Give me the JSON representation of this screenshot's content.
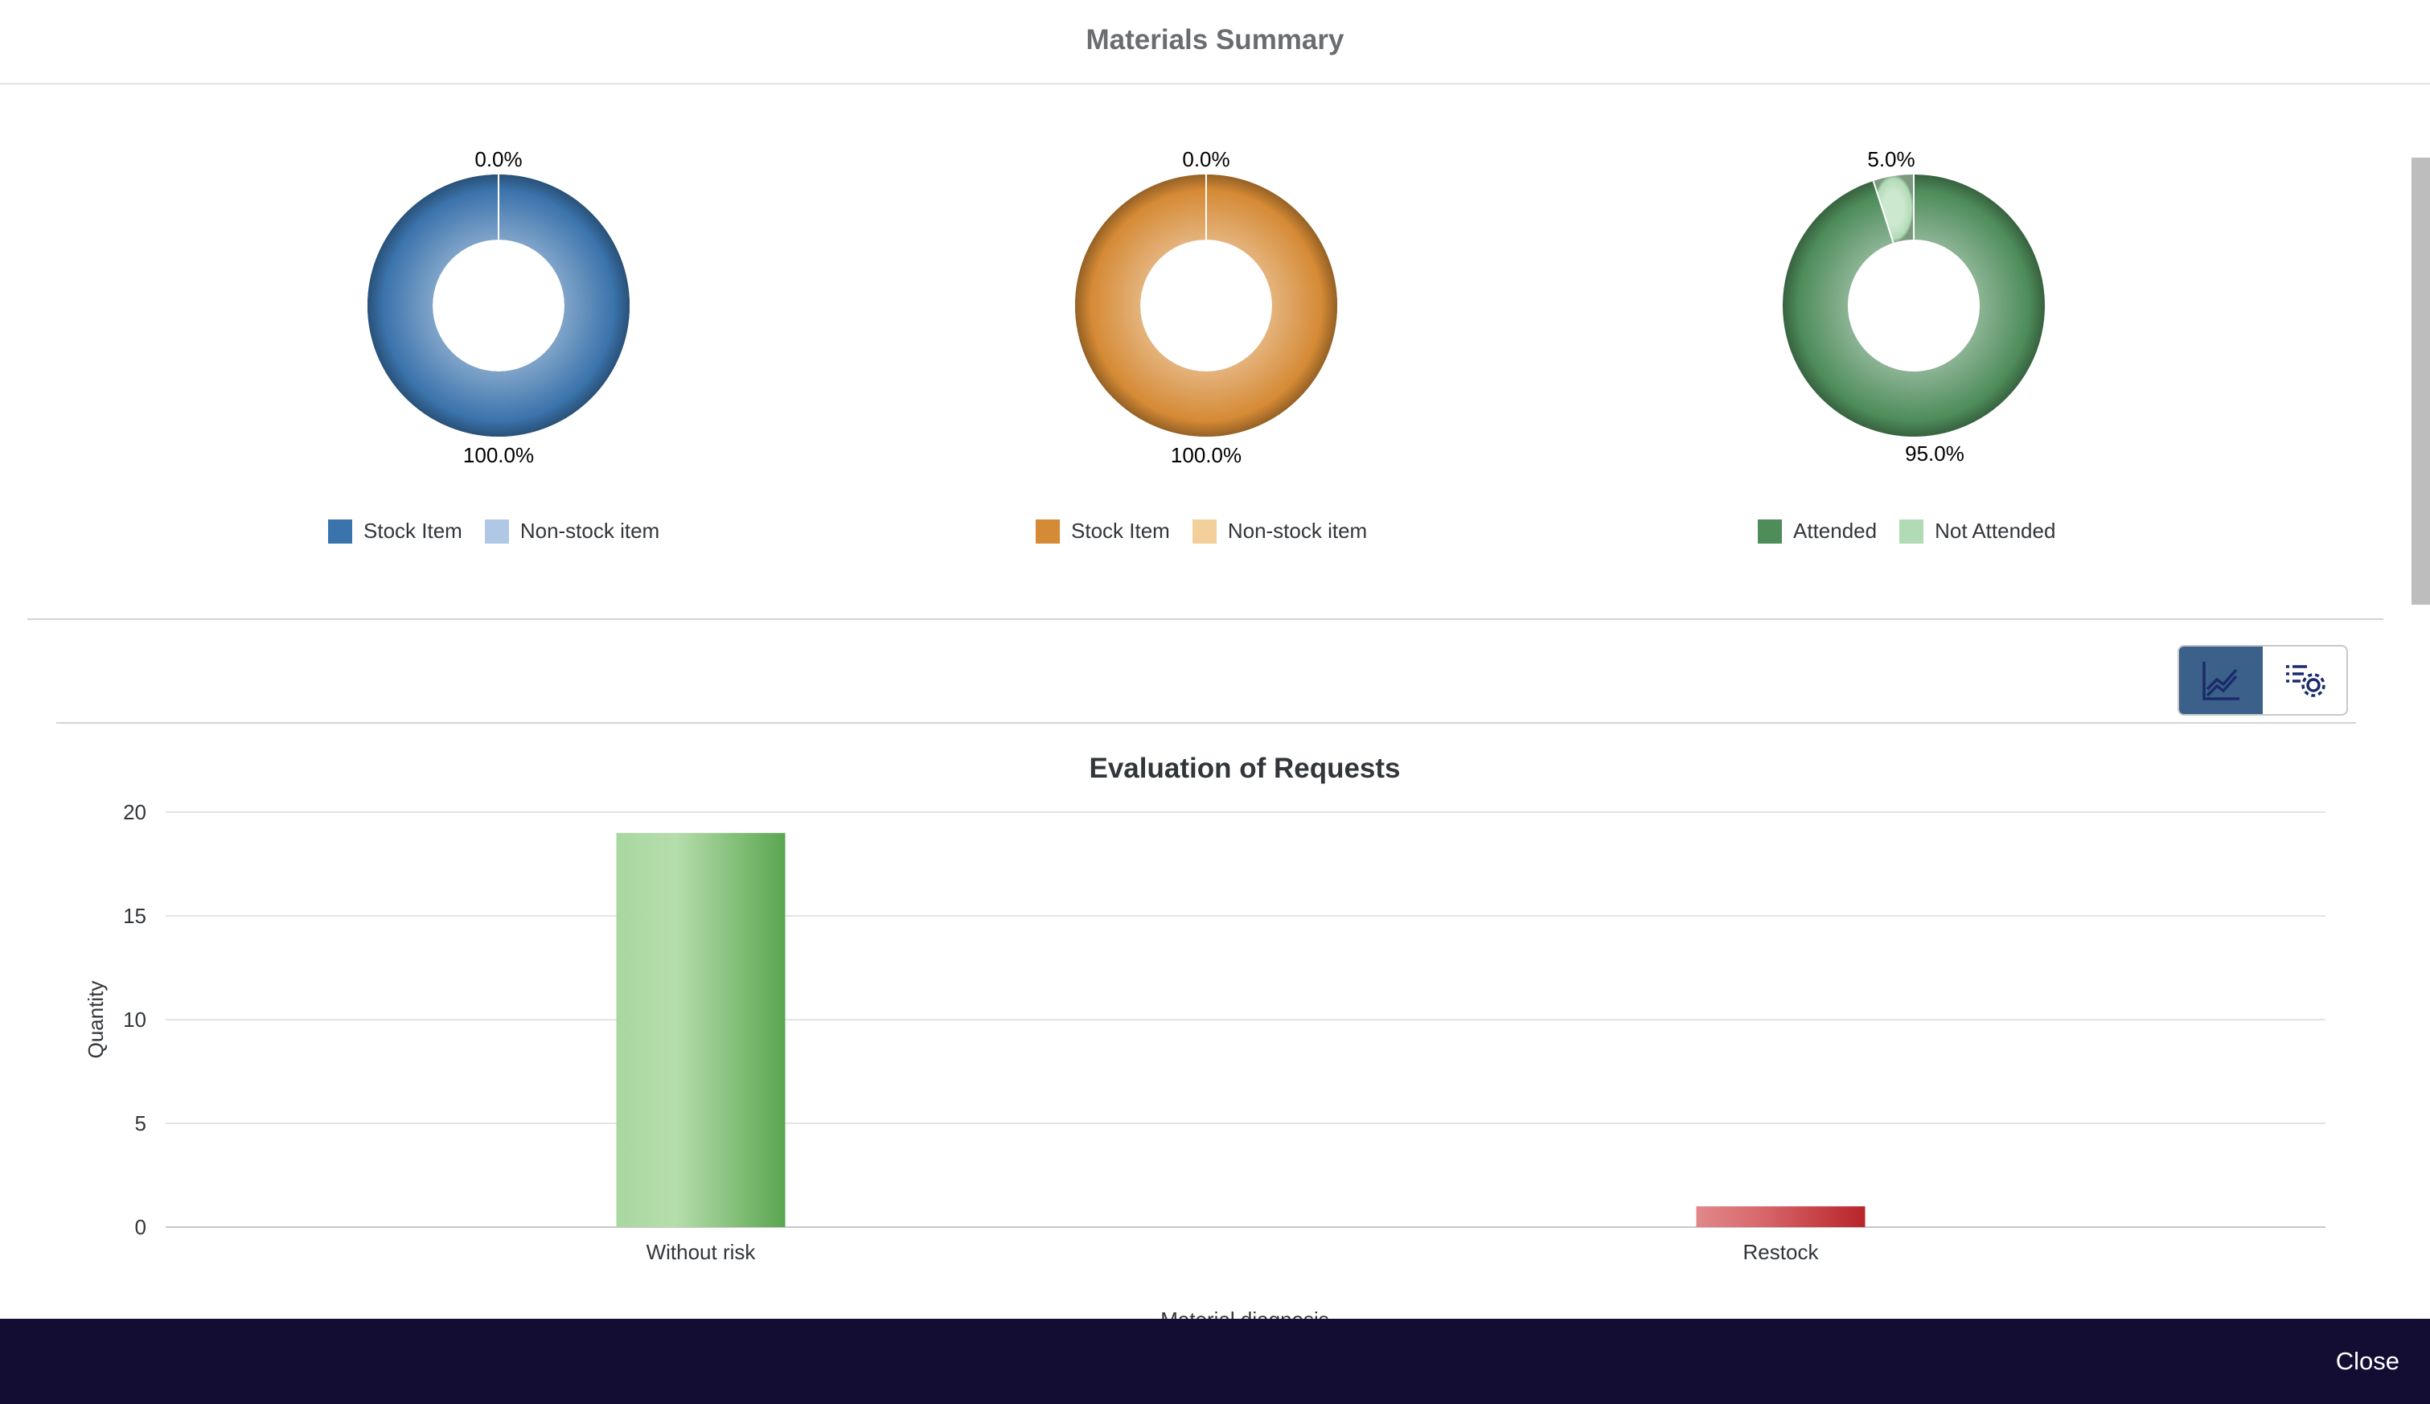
{
  "dialog": {
    "title": "Materials Summary",
    "close_label": "Close"
  },
  "toolbar": {
    "chart_view_icon": "line-chart-icon",
    "settings_icon": "list-settings-icon"
  },
  "chart_data": [
    {
      "type": "pie",
      "donut": true,
      "labels": [
        "Stock Item",
        "Non-stock item"
      ],
      "values": [
        100.0,
        0.0
      ],
      "value_labels": [
        "100.0%",
        "0.0%"
      ],
      "colors": [
        "#3b73ac",
        "#b0c8e6"
      ],
      "legend": "bottom"
    },
    {
      "type": "pie",
      "donut": true,
      "labels": [
        "Stock Item",
        "Non-stock item"
      ],
      "values": [
        100.0,
        0.0
      ],
      "value_labels": [
        "100.0%",
        "0.0%"
      ],
      "colors": [
        "#d58a35",
        "#f3cf9c"
      ],
      "legend": "bottom"
    },
    {
      "type": "pie",
      "donut": true,
      "labels": [
        "Attended",
        "Not Attended"
      ],
      "values": [
        95.0,
        5.0
      ],
      "value_labels": [
        "95.0%",
        "5.0%"
      ],
      "colors": [
        "#4e8c5a",
        "#b1dbb5"
      ],
      "legend": "bottom"
    },
    {
      "type": "bar",
      "title": "Evaluation of Requests",
      "xlabel": "Material diagnosis",
      "ylabel": "Quantity",
      "categories": [
        "Without risk",
        "Restock"
      ],
      "values": [
        19,
        1
      ],
      "colors": [
        "#6ab35e",
        "#c63a3e"
      ],
      "ylim": [
        0,
        20
      ],
      "yticks": [
        0,
        5,
        10,
        15,
        20
      ],
      "grid": true
    }
  ]
}
